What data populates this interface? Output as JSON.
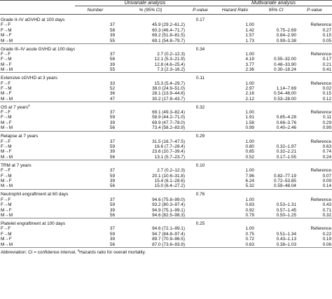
{
  "table": {
    "group_headers": {
      "univariate": "Univariate analysis",
      "multivariate": "Multivariate analysis"
    },
    "columns": [
      "Number",
      "% (95% CI)",
      "P-value",
      "Hazard Ratio",
      "95% CI",
      "P-value"
    ],
    "sections": [
      {
        "title": "Grade II–IV aGVHD at 100 days",
        "sup": "",
        "p": "0.17",
        "rows": [
          {
            "label": "F→F",
            "n": "37",
            "pct": "45.9 (29.2–61.2)",
            "hr": "1.00",
            "ci": "",
            "p": "Reference"
          },
          {
            "label": "F→M",
            "n": "58",
            "pct": "60.3 (46.4–71.7)",
            "hr": "1.42",
            "ci": "0.75–2.69",
            "p": "0.27"
          },
          {
            "label": "M→F",
            "n": "39",
            "pct": "69.2 (51.8–81.5)",
            "hr": "1.57",
            "ci": "0.84–2.90",
            "p": "0.15"
          },
          {
            "label": "M→M",
            "n": "55",
            "pct": "69.1 (54.8–79.7)",
            "hr": "1.73",
            "ci": "0.99–3.38",
            "p": "0.05"
          }
        ]
      },
      {
        "title": "Grade III–IV acute GVHD at 100 days",
        "sup": "",
        "p": "0.34",
        "rows": [
          {
            "label": "F→F",
            "n": "37",
            "pct": "2.7 (0.2–12.3)",
            "hr": "1.00",
            "ci": "",
            "p": "Reference"
          },
          {
            "label": "F→M",
            "n": "58",
            "pct": "12.1 (5.3–21.9)",
            "hr": "4.19",
            "ci": "0.55–32.00",
            "p": "0.17"
          },
          {
            "label": "M→F",
            "n": "39",
            "pct": "12.8 (4.6–25.4)",
            "hr": "3.77",
            "ci": "0.48–33.90",
            "p": "0.21"
          },
          {
            "label": "M→M",
            "n": "55",
            "pct": "7.3 (2.3–16.2)",
            "hr": "2.36",
            "ci": "0.30–18.24",
            "p": "0.41"
          }
        ]
      },
      {
        "title": "Extensive cGVHD at 3 years",
        "sup": "",
        "p": "0.11",
        "rows": [
          {
            "label": "F→F",
            "n": "33",
            "pct": "15.3 (5.4–29.7)",
            "hr": "1.00",
            "ci": "",
            "p": "Reference"
          },
          {
            "label": "F→M",
            "n": "52",
            "pct": "38.0 (24.9–51.0)",
            "hr": "2.97",
            "ci": "1.14–7.69",
            "p": "0.02"
          },
          {
            "label": "M→F",
            "n": "36",
            "pct": "28.1 (13.9–44.6)",
            "hr": "2.16",
            "ci": "0.54–48.00",
            "p": "0.15"
          },
          {
            "label": "M→M",
            "n": "47",
            "pct": "30.2 (17.8–43.7)",
            "hr": "2.12",
            "ci": "0.53–28.00",
            "p": "0.12"
          }
        ]
      },
      {
        "title": "OS at 7 years",
        "sup": "a",
        "p": "0.32",
        "rows": [
          {
            "label": "F→F",
            "n": "37",
            "pct": "69.1 (49.3–82.4)",
            "hr": "1.00",
            "ci": "",
            "p": "Reference"
          },
          {
            "label": "F→M",
            "n": "59",
            "pct": "58.9 (44.2–71.0)",
            "hr": "1.91",
            "ci": "0.85–4.28",
            "p": "0.11"
          },
          {
            "label": "M→F",
            "n": "39",
            "pct": "69.9 (47.7–78.0)",
            "hr": "1.58",
            "ci": "0.66–3.76",
            "p": "0.29"
          },
          {
            "label": "M→M",
            "n": "56",
            "pct": "73.4 (58.2–83.9)",
            "hr": "0.99",
            "ci": "0.40–2.46",
            "p": "0.99"
          }
        ]
      },
      {
        "title": "Relapse at 7 years",
        "sup": "",
        "p": "0.29",
        "rows": [
          {
            "label": "F→F",
            "n": "37",
            "pct": "31.5 (16.7–47.5)",
            "hr": "1.00",
            "ci": "",
            "p": "Reference"
          },
          {
            "label": "F→M",
            "n": "59",
            "pct": "16.6 (7.7–28.4)",
            "hr": "0.80",
            "ci": "0.32–1.97",
            "p": "0.63"
          },
          {
            "label": "M→F",
            "n": "39",
            "pct": "23.6 (10.7–39.4)",
            "hr": "0.85",
            "ci": "0.32–2.21",
            "p": "0.74"
          },
          {
            "label": "M→M",
            "n": "56",
            "pct": "13.1 (5.7–23.7)",
            "hr": "0.52",
            "ci": "0.17–1.55",
            "p": "0.24"
          }
        ]
      },
      {
        "title": "TRM at 7 years",
        "sup": "",
        "p": "0.10",
        "rows": [
          {
            "label": "F→F",
            "n": "37",
            "pct": "2.7 (0.2–12.3)",
            "hr": "1.00",
            "ci": "",
            "p": "Reference"
          },
          {
            "label": "F→M",
            "n": "59",
            "pct": "20.1 (10.6–31.8)",
            "hr": "7.96",
            "ci": "0.82–77.19",
            "p": "0.07"
          },
          {
            "label": "M→F",
            "n": "39",
            "pct": "15.4 (6.1–28.6)",
            "hr": "6.24",
            "ci": "0.72–53.85",
            "p": "0.09"
          },
          {
            "label": "M→M",
            "n": "56",
            "pct": "15.0 (6.4–27.2)",
            "hr": "5.32",
            "ci": "0.59–48.04",
            "p": "0.14"
          }
        ]
      },
      {
        "title": "Neutrophil engraftment at 60 days",
        "sup": "",
        "p": "0.76",
        "rows": [
          {
            "label": "F→F",
            "n": "37",
            "pct": "94.6 (75.8–99.0)",
            "hr": "1.00",
            "ci": "",
            "p": "Reference"
          },
          {
            "label": "F→M",
            "n": "59",
            "pct": "93.2 (80.3–97.4)",
            "hr": "0.83",
            "ci": "0.53–1.31",
            "p": "0.43"
          },
          {
            "label": "M→F",
            "n": "39",
            "pct": "94.9 (75.1–99.1)",
            "hr": "0.92",
            "ci": "0.57–1.45",
            "p": "0.71"
          },
          {
            "label": "M→M",
            "n": "56",
            "pct": "94.6 (82.5–98.3)",
            "hr": "0.79",
            "ci": "0.50–1.25",
            "p": "0.32"
          }
        ]
      },
      {
        "title": "Platelet engraftment at 100 days",
        "sup": "",
        "p": "0.25",
        "rows": [
          {
            "label": "F→F",
            "n": "37",
            "pct": "94.6 (72.1–99.1)",
            "hr": "1.00",
            "ci": "",
            "p": "Reference"
          },
          {
            "label": "F→M",
            "n": "59",
            "pct": "94.7 (84.8–97.4)",
            "hr": "0.75",
            "ci": "0.51–1.34",
            "p": "0.22"
          },
          {
            "label": "M→F",
            "n": "39",
            "pct": "89.7 (70.9–96.5)",
            "hr": "0.72",
            "ci": "0.43–1.13",
            "p": "0.19"
          },
          {
            "label": "M→M",
            "n": "56",
            "pct": "87.0 (73.6–93.9)",
            "hr": "0.63",
            "ci": "0.38–1.03",
            "p": "0.06"
          }
        ]
      }
    ],
    "footnote": {
      "text1": "Abbreviation: CI = confidence interval. ",
      "sup": "a",
      "text2": "Hazards ratio for overall mortality."
    }
  }
}
